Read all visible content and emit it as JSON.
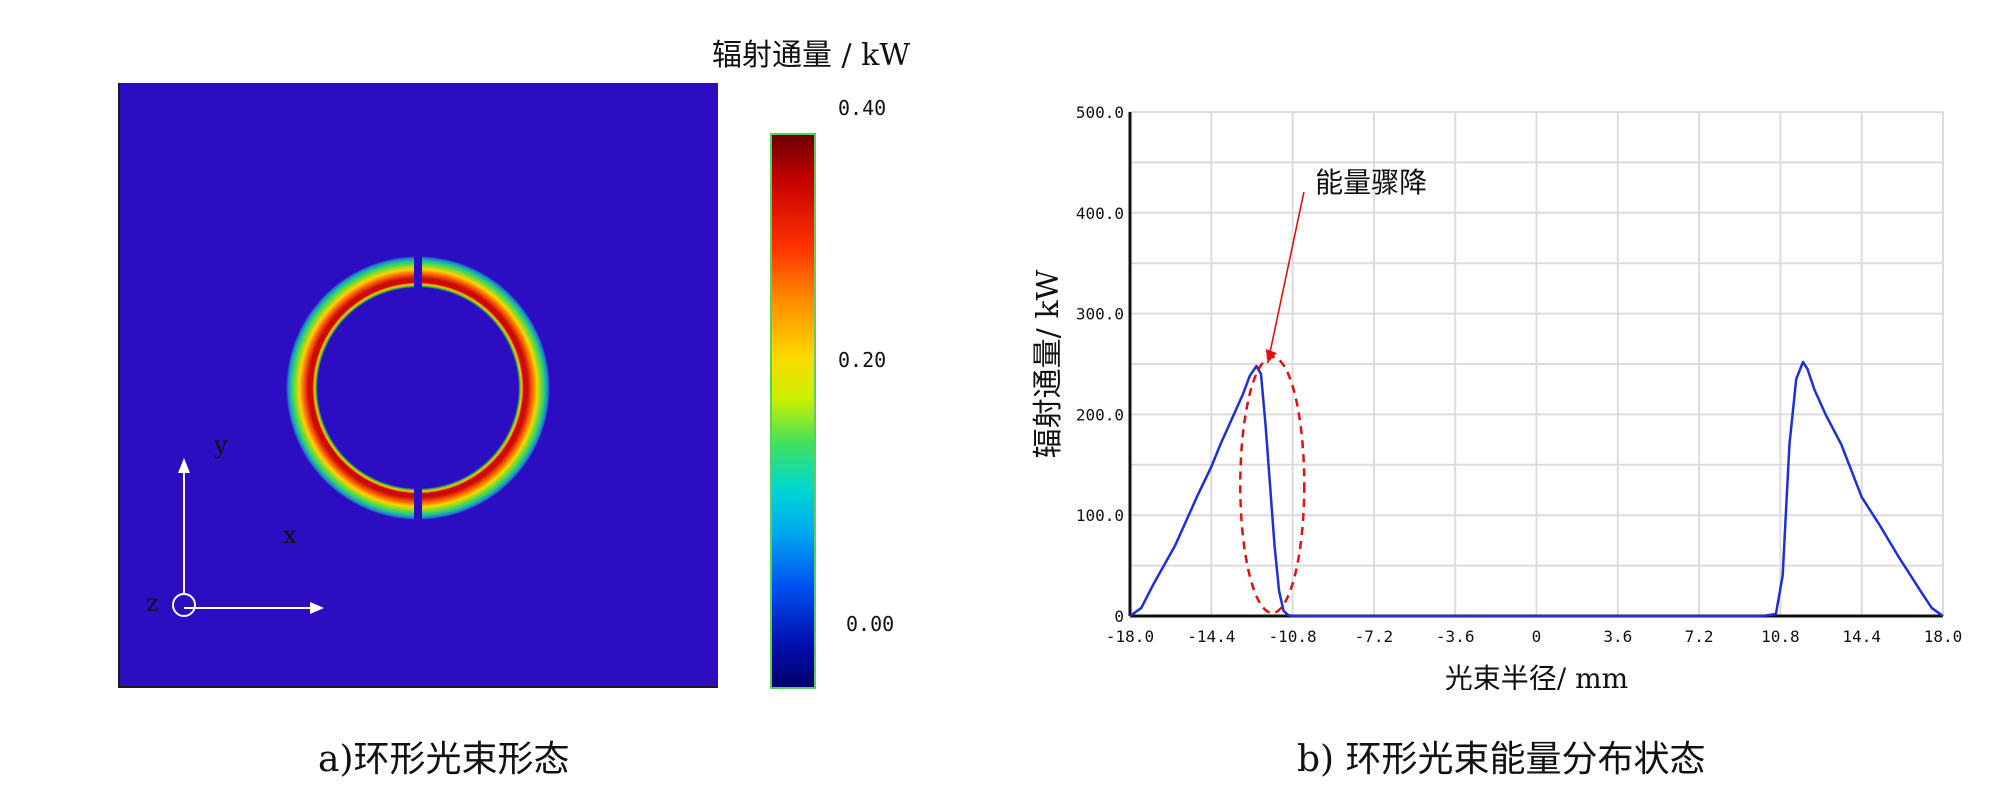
{
  "left_panel": {
    "colorbar_title": "辐射通量 / kW",
    "colorbar_ticks": [
      "0.40",
      "0.20",
      "0.00"
    ],
    "axis_labels": {
      "y": "y",
      "x": "x",
      "z": "z"
    },
    "caption": "a)环形光束形态",
    "colors": {
      "background": "#2d0dc2",
      "ring_peak": "#cc0a0a"
    }
  },
  "chart_data": {
    "type": "line",
    "title": "",
    "xlabel": "光束半径/ mm",
    "ylabel": "辐射通量/ kW",
    "xlim": [
      -18.0,
      18.0
    ],
    "ylim": [
      0,
      500
    ],
    "x_ticks": [
      "-18.0",
      "-14.4",
      "-10.8",
      "-7.2",
      "-3.6",
      "0",
      "3.6",
      "7.2",
      "10.8",
      "14.4",
      "18.0"
    ],
    "y_ticks": [
      "0",
      "100.0",
      "200.0",
      "300.0",
      "400.0",
      "500.0"
    ],
    "grid": true,
    "series": [
      {
        "color": "#1f2fd6",
        "x": [
          -18.0,
          -17.5,
          -17.0,
          -16.0,
          -15.0,
          -14.4,
          -14.0,
          -13.5,
          -13.0,
          -12.7,
          -12.4,
          -12.2,
          -12.0,
          -11.8,
          -11.6,
          -11.4,
          -11.2,
          -11.0,
          -10.8,
          -10.5,
          0,
          10.0,
          10.6,
          10.9,
          11.2,
          11.5,
          11.8,
          12.0,
          12.3,
          12.8,
          13.5,
          14.4,
          15.2,
          16.0,
          17.0,
          17.5,
          18.0
        ],
        "y": [
          0,
          8,
          30,
          70,
          120,
          148,
          170,
          195,
          220,
          238,
          248,
          240,
          190,
          130,
          70,
          25,
          5,
          1,
          0,
          0,
          0,
          0,
          2,
          40,
          170,
          235,
          252,
          245,
          225,
          200,
          170,
          118,
          90,
          60,
          25,
          8,
          0
        ]
      }
    ],
    "annotations": [
      {
        "text": "能量骤降",
        "target_x": -12.0,
        "target_y": 220
      }
    ]
  },
  "right_panel": {
    "caption": "b) 环形光束能量分布状态",
    "annotation_color": "#e01010"
  }
}
